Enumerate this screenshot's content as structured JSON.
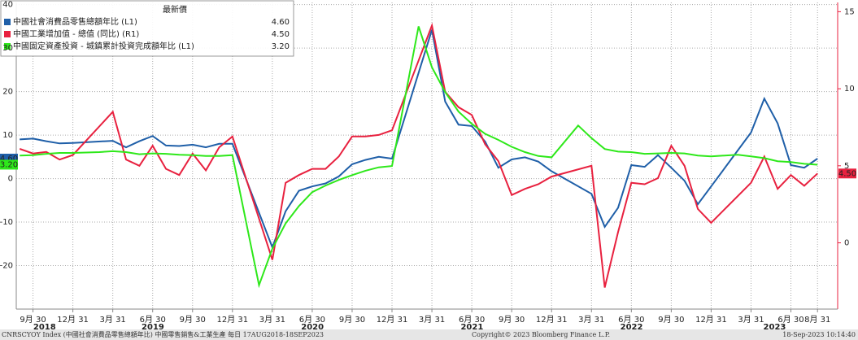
{
  "chart_data": {
    "type": "line",
    "legend_title": "最新價",
    "footer_left": "CNRSCYOY Index (中國社會消費品零售總額年比) 中國零售銷售&工業生產  每日 17AUG2018-18SEP2023",
    "footer_center": "Copyright© 2023 Bloomberg Finance L.P.",
    "footer_right": "18-Sep-2023 10:14:40",
    "xlim": [
      "2018-08-23",
      "2023-10-16"
    ],
    "xticks": [
      {
        "value": "2018-09-30",
        "label": "9月 30"
      },
      {
        "value": "2018-12-31",
        "label": "12月 31"
      },
      {
        "value": "2019-03-31",
        "label": "3月 31"
      },
      {
        "value": "2019-06-30",
        "label": "6月 30"
      },
      {
        "value": "2019-09-30",
        "label": "9月 30"
      },
      {
        "value": "2019-12-31",
        "label": "12月 31"
      },
      {
        "value": "2020-03-31",
        "label": "3月 31"
      },
      {
        "value": "2020-06-30",
        "label": "6月 30"
      },
      {
        "value": "2020-09-30",
        "label": "9月 30"
      },
      {
        "value": "2020-12-31",
        "label": "12月 31"
      },
      {
        "value": "2021-03-31",
        "label": "3月 31"
      },
      {
        "value": "2021-06-30",
        "label": "6月 30"
      },
      {
        "value": "2021-09-30",
        "label": "9月 30"
      },
      {
        "value": "2021-12-31",
        "label": "12月 31"
      },
      {
        "value": "2022-03-31",
        "label": "3月 31"
      },
      {
        "value": "2022-06-30",
        "label": "6月 30"
      },
      {
        "value": "2022-09-30",
        "label": "9月 30"
      },
      {
        "value": "2022-12-31",
        "label": "12月 31"
      },
      {
        "value": "2023-03-31",
        "label": "3月 31"
      },
      {
        "value": "2023-06-30",
        "label": "6月 30"
      },
      {
        "value": "2023-08-31",
        "label": "8月 31"
      }
    ],
    "years": [
      "2018",
      "2019",
      "2020",
      "2021",
      "2022",
      "2023"
    ],
    "ylim": [
      -30,
      40.5
    ],
    "yticks": [
      -20,
      -10,
      0,
      10,
      20,
      30,
      40
    ],
    "y2lim": [
      -4.3,
      15.6
    ],
    "y2ticks": [
      0,
      5,
      10,
      15
    ],
    "grid": true,
    "series": [
      {
        "name": "中國社會消費品零售總額年比 (L1)",
        "color": "#1f5fa8",
        "last_label": "4.60",
        "x": [
          "2018-08-31",
          "2018-09-30",
          "2018-10-31",
          "2018-11-30",
          "2018-12-31",
          "2019-03-31",
          "2019-04-30",
          "2019-05-31",
          "2019-06-30",
          "2019-07-31",
          "2019-08-31",
          "2019-09-30",
          "2019-10-31",
          "2019-11-30",
          "2019-12-31",
          "2020-03-31",
          "2020-04-30",
          "2020-05-31",
          "2020-06-30",
          "2020-07-31",
          "2020-08-31",
          "2020-09-30",
          "2020-10-31",
          "2020-11-30",
          "2020-12-31",
          "2021-03-31",
          "2021-04-30",
          "2021-05-31",
          "2021-06-30",
          "2021-07-31",
          "2021-08-31",
          "2021-09-30",
          "2021-10-31",
          "2021-11-30",
          "2021-12-31",
          "2022-03-31",
          "2022-04-30",
          "2022-05-31",
          "2022-06-30",
          "2022-07-31",
          "2022-08-31",
          "2022-09-30",
          "2022-10-31",
          "2022-11-30",
          "2022-12-31",
          "2023-03-31",
          "2023-04-30",
          "2023-05-31",
          "2023-06-30",
          "2023-07-31",
          "2023-08-31"
        ],
        "values": [
          9.0,
          9.2,
          8.6,
          8.1,
          8.2,
          8.7,
          7.2,
          8.6,
          9.8,
          7.6,
          7.5,
          7.8,
          7.2,
          8.0,
          8.0,
          -15.8,
          -7.5,
          -2.8,
          -1.8,
          -1.1,
          0.5,
          3.3,
          4.3,
          5.0,
          4.6,
          34.2,
          17.7,
          12.4,
          12.1,
          8.5,
          2.5,
          4.4,
          4.9,
          3.9,
          1.7,
          -3.5,
          -11.1,
          -6.7,
          3.1,
          2.7,
          5.4,
          2.5,
          -0.5,
          -5.9,
          -1.8,
          10.6,
          18.4,
          12.7,
          3.1,
          2.5,
          4.6
        ]
      },
      {
        "name": "中國工業增加值 - 總值 (同比)  (R1)",
        "color": "#e8213f",
        "axis": "y2",
        "last_label": "4.50",
        "x": [
          "2018-08-31",
          "2018-09-30",
          "2018-10-31",
          "2018-11-30",
          "2018-12-31",
          "2019-03-31",
          "2019-04-30",
          "2019-05-31",
          "2019-06-30",
          "2019-07-31",
          "2019-08-31",
          "2019-09-30",
          "2019-10-31",
          "2019-11-30",
          "2019-12-31",
          "2020-03-31",
          "2020-04-30",
          "2020-05-31",
          "2020-06-30",
          "2020-07-31",
          "2020-08-31",
          "2020-09-30",
          "2020-10-31",
          "2020-11-30",
          "2020-12-31",
          "2021-03-31",
          "2021-04-30",
          "2021-05-31",
          "2021-06-30",
          "2021-07-31",
          "2021-08-31",
          "2021-09-30",
          "2021-10-31",
          "2021-11-30",
          "2021-12-31",
          "2022-03-31",
          "2022-04-30",
          "2022-05-31",
          "2022-06-30",
          "2022-07-31",
          "2022-08-31",
          "2022-09-30",
          "2022-10-31",
          "2022-11-30",
          "2022-12-31",
          "2023-03-31",
          "2023-04-30",
          "2023-05-31",
          "2023-06-30",
          "2023-07-31",
          "2023-08-31"
        ],
        "values": [
          6.1,
          5.8,
          5.9,
          5.4,
          5.7,
          8.5,
          5.4,
          5.0,
          6.3,
          4.8,
          4.4,
          5.8,
          4.7,
          6.2,
          6.9,
          -1.1,
          3.9,
          4.4,
          4.8,
          4.8,
          5.6,
          6.9,
          6.9,
          7.0,
          7.3,
          14.1,
          9.8,
          8.8,
          8.3,
          6.4,
          5.3,
          3.1,
          3.5,
          3.8,
          4.3,
          5.0,
          -2.9,
          0.7,
          3.9,
          3.8,
          4.2,
          6.3,
          5.0,
          2.2,
          1.3,
          3.9,
          5.6,
          3.5,
          4.4,
          3.7,
          4.5
        ]
      },
      {
        "name": "中國固定資產投資 - 城鎮累計投資完成額年比 (L1)",
        "color": "#2ee81a",
        "last_label": "3.20",
        "x": [
          "2018-08-31",
          "2018-09-30",
          "2018-10-31",
          "2018-11-30",
          "2018-12-31",
          "2019-02-28",
          "2019-03-31",
          "2019-04-30",
          "2019-05-31",
          "2019-06-30",
          "2019-07-31",
          "2019-08-31",
          "2019-09-30",
          "2019-10-31",
          "2019-11-30",
          "2019-12-31",
          "2020-02-29",
          "2020-03-31",
          "2020-04-30",
          "2020-05-31",
          "2020-06-30",
          "2020-07-31",
          "2020-08-31",
          "2020-09-30",
          "2020-10-31",
          "2020-11-30",
          "2020-12-31",
          "2021-02-28",
          "2021-03-31",
          "2021-04-30",
          "2021-05-31",
          "2021-06-30",
          "2021-07-31",
          "2021-08-31",
          "2021-09-30",
          "2021-10-31",
          "2021-11-30",
          "2021-12-31",
          "2022-02-28",
          "2022-03-31",
          "2022-04-30",
          "2022-05-31",
          "2022-06-30",
          "2022-07-31",
          "2022-08-31",
          "2022-09-30",
          "2022-10-31",
          "2022-11-30",
          "2022-12-31",
          "2023-02-28",
          "2023-03-31",
          "2023-04-30",
          "2023-05-31",
          "2023-06-30",
          "2023-07-31",
          "2023-08-31"
        ],
        "values": [
          5.3,
          5.4,
          5.7,
          5.9,
          5.9,
          6.1,
          6.3,
          6.1,
          5.6,
          5.8,
          5.7,
          5.5,
          5.4,
          5.2,
          5.2,
          5.4,
          -24.5,
          -16.1,
          -10.3,
          -6.3,
          -3.1,
          -1.6,
          -0.3,
          0.8,
          1.8,
          2.6,
          2.9,
          35.0,
          25.6,
          19.9,
          15.4,
          12.6,
          10.3,
          8.9,
          7.3,
          6.1,
          5.2,
          4.9,
          12.2,
          9.3,
          6.8,
          6.2,
          6.1,
          5.7,
          5.8,
          5.9,
          5.8,
          5.3,
          5.1,
          5.5,
          5.1,
          4.7,
          4.0,
          3.8,
          3.4,
          3.2
        ]
      }
    ]
  }
}
